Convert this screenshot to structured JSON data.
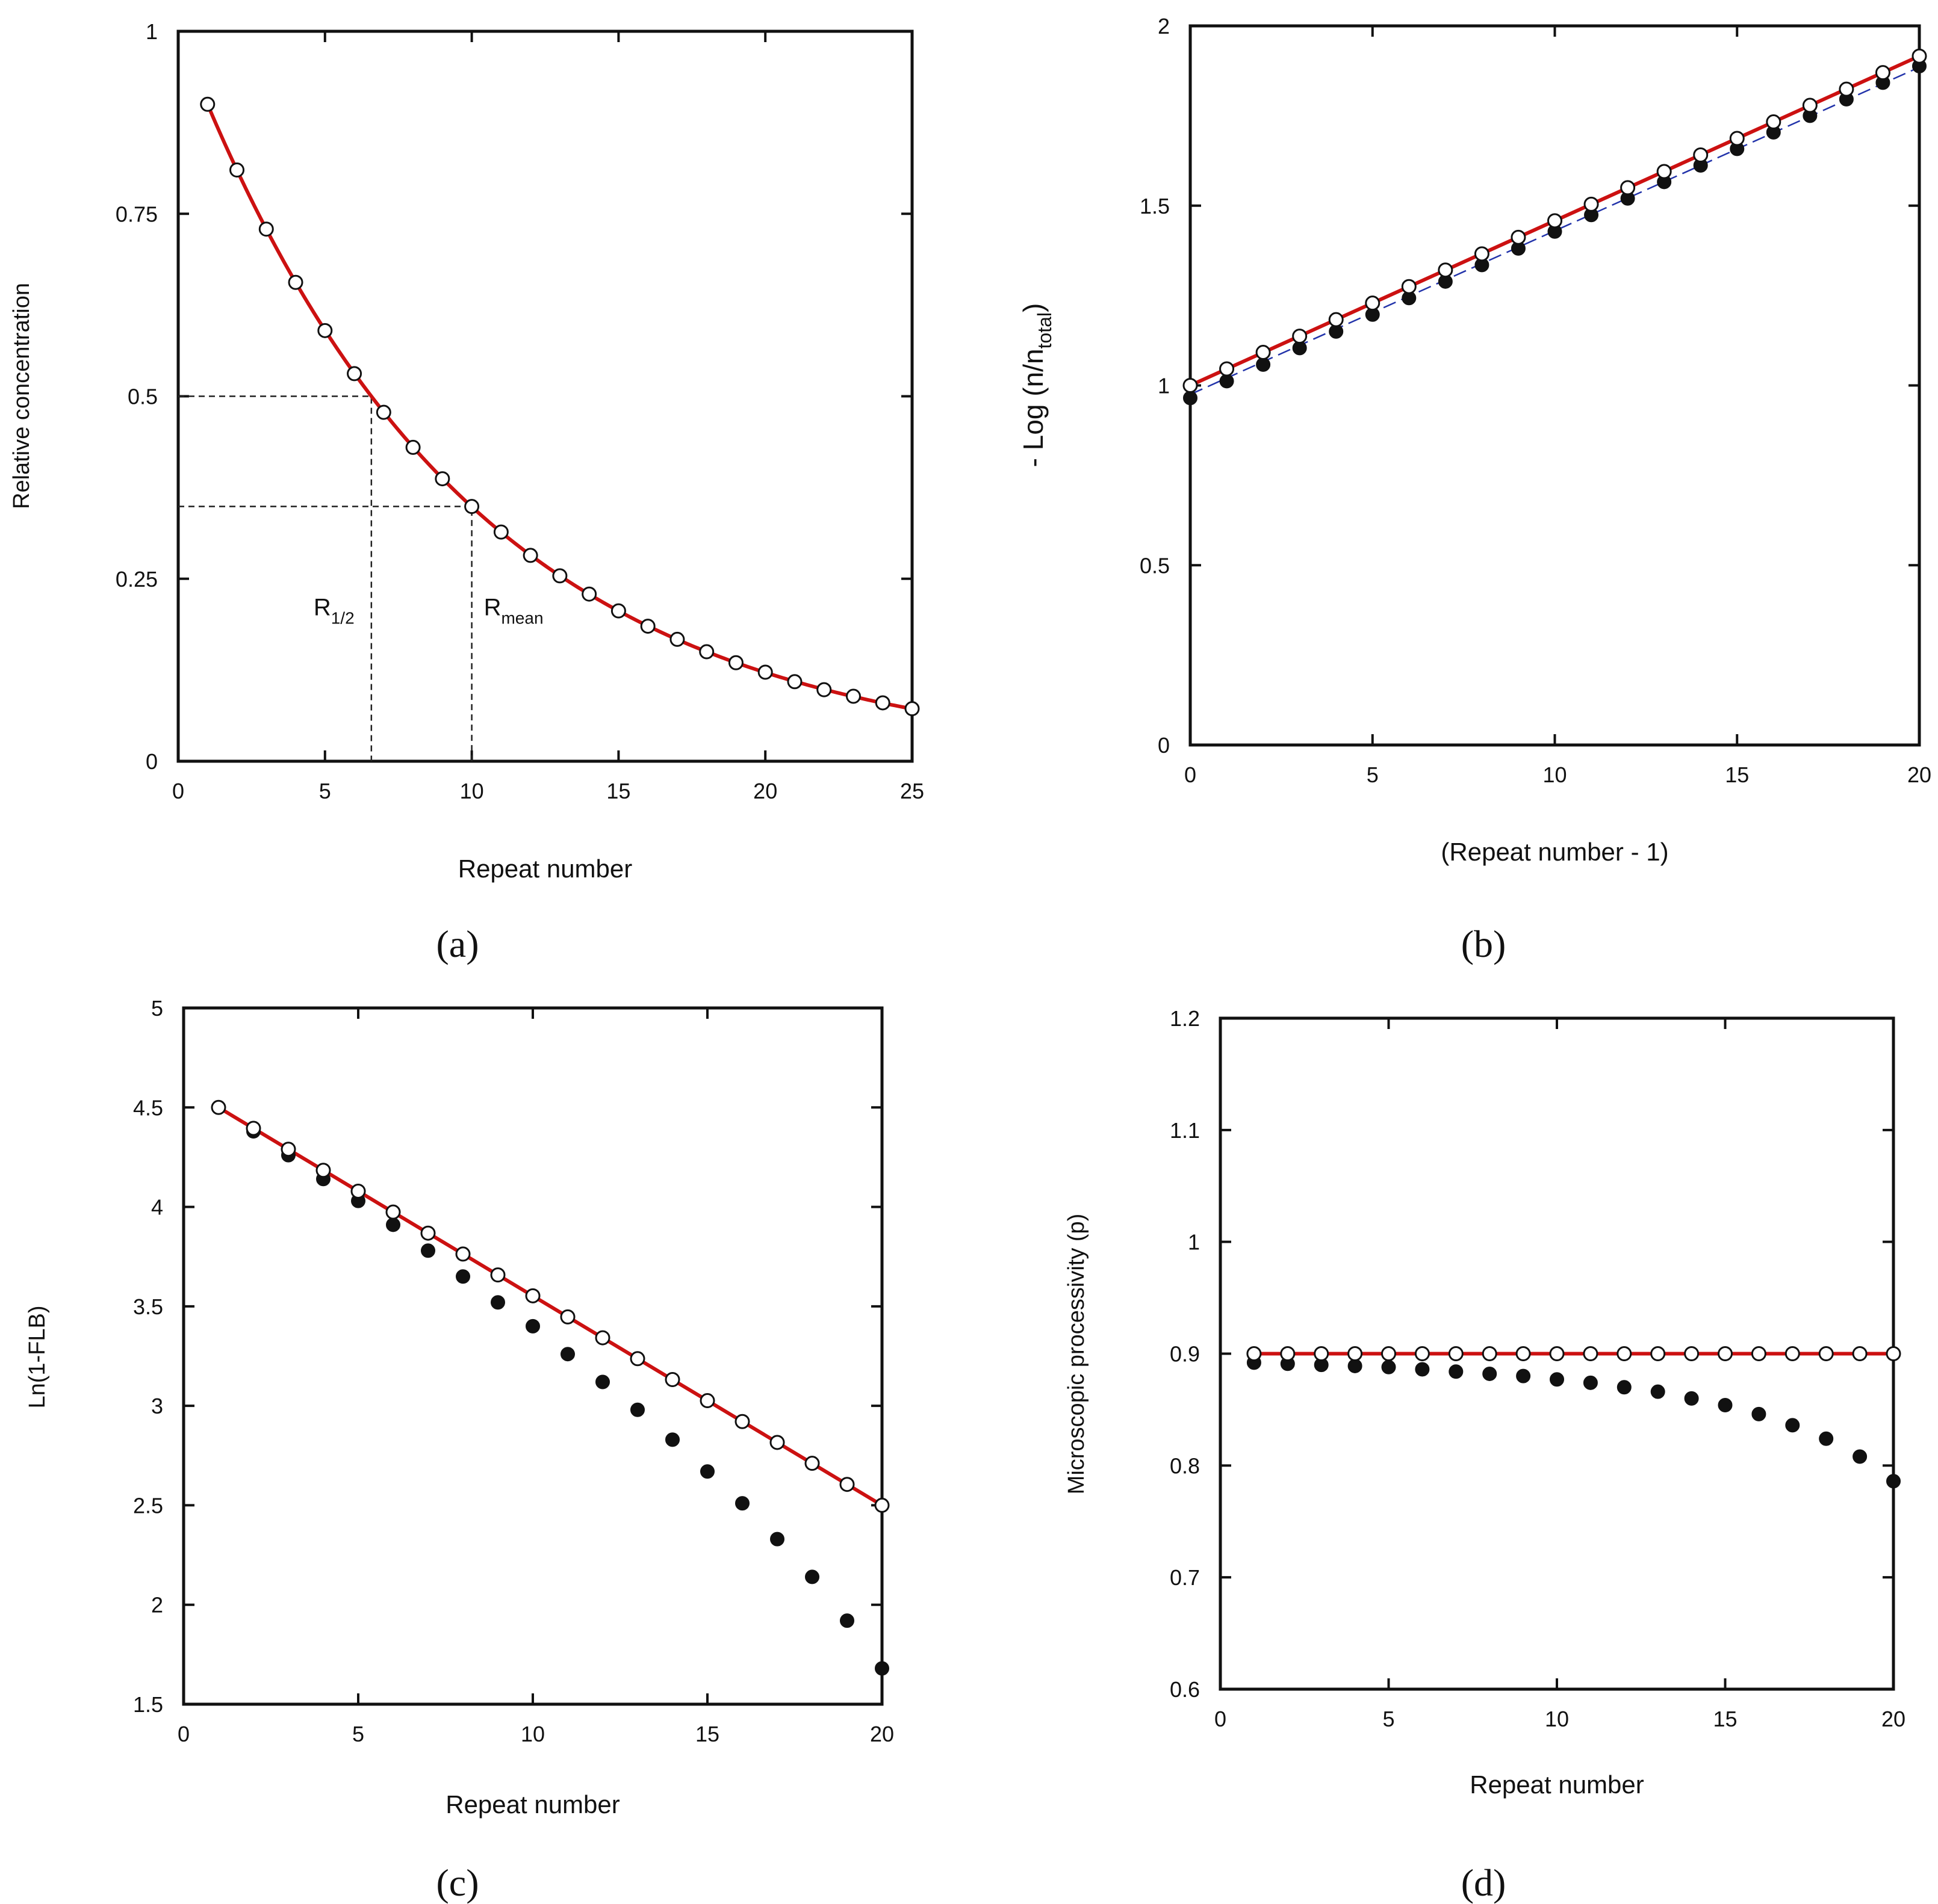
{
  "chart_data": [
    {
      "type": "line",
      "panel_label": "(a)",
      "xlabel": "Repeat number",
      "ylabel": "Relative concentration",
      "xlim": [
        0,
        25
      ],
      "ylim": [
        0,
        1
      ],
      "xticks": [
        0,
        5,
        10,
        15,
        20,
        25
      ],
      "xtick_labels": [
        "0",
        "5",
        "10",
        "15",
        "20",
        "25"
      ],
      "yticks": [
        0,
        0.25,
        0.5,
        0.75,
        1
      ],
      "ytick_labels": [
        "0",
        "0.25",
        "0.5",
        "0.75",
        "1"
      ],
      "curve": {
        "type": "exponential",
        "formula": "0.9^x",
        "x_range": [
          1,
          25
        ],
        "color": "#cc1111"
      },
      "series": [
        {
          "name": "open circles",
          "marker": "open",
          "x": [
            1,
            2,
            3,
            4,
            5,
            6,
            7,
            8,
            9,
            10,
            11,
            12,
            13,
            14,
            15,
            16,
            17,
            18,
            19,
            20,
            21,
            22,
            23,
            24,
            25
          ],
          "y": [
            0.9,
            0.81,
            0.729,
            0.656,
            0.59,
            0.531,
            0.478,
            0.43,
            0.387,
            0.349,
            0.314,
            0.282,
            0.254,
            0.229,
            0.206,
            0.185,
            0.167,
            0.15,
            0.135,
            0.122,
            0.109,
            0.098,
            0.089,
            0.08,
            0.072
          ]
        }
      ],
      "reference_lines": [
        {
          "label": "R",
          "subscript": "1/2",
          "x": 6.58,
          "y": 0.5
        },
        {
          "label": "R",
          "subscript": "mean",
          "x": 10,
          "y": 0.349
        }
      ]
    },
    {
      "type": "line",
      "panel_label": "(b)",
      "xlabel": "(Repeat number - 1)",
      "ylabel": "- Log (n/n",
      "ylabel_sub": "total",
      "ylabel_end": ")",
      "xlim": [
        0,
        20
      ],
      "ylim": [
        0,
        2
      ],
      "xticks": [
        0,
        5,
        10,
        15,
        20
      ],
      "xtick_labels": [
        "0",
        "5",
        "10",
        "15",
        "20"
      ],
      "yticks": [
        0,
        0.5,
        1,
        1.5,
        2
      ],
      "ytick_labels": [
        "0",
        "0.5",
        "1",
        "1.5",
        "2"
      ],
      "fit_lines": [
        {
          "name": "open fit",
          "x": [
            0,
            20
          ],
          "y": [
            1.0,
            1.916
          ],
          "color": "#cc1111",
          "style": "solid"
        },
        {
          "name": "filled fit",
          "x": [
            0,
            20
          ],
          "y": [
            0.975,
            1.885
          ],
          "color": "#2233aa",
          "style": "dashed"
        }
      ],
      "series": [
        {
          "name": "open circles",
          "marker": "open",
          "x": [
            0,
            1,
            2,
            3,
            4,
            5,
            6,
            7,
            8,
            9,
            10,
            11,
            12,
            13,
            14,
            15,
            16,
            17,
            18,
            19,
            20
          ],
          "y": [
            1.0,
            1.046,
            1.092,
            1.137,
            1.183,
            1.229,
            1.275,
            1.321,
            1.366,
            1.412,
            1.458,
            1.504,
            1.55,
            1.595,
            1.641,
            1.687,
            1.733,
            1.779,
            1.824,
            1.87,
            1.916
          ]
        },
        {
          "name": "filled circles",
          "marker": "filled",
          "x": [
            0,
            1,
            2,
            3,
            4,
            5,
            6,
            7,
            8,
            9,
            10,
            11,
            12,
            13,
            14,
            15,
            16,
            17,
            18,
            19,
            20
          ],
          "y": [
            0.965,
            1.012,
            1.058,
            1.104,
            1.15,
            1.197,
            1.243,
            1.289,
            1.335,
            1.381,
            1.428,
            1.474,
            1.52,
            1.566,
            1.612,
            1.658,
            1.704,
            1.75,
            1.796,
            1.842,
            1.888
          ]
        }
      ]
    },
    {
      "type": "line",
      "panel_label": "(c)",
      "xlabel": "Repeat number",
      "ylabel": "Ln(1-FLB)",
      "xlim": [
        0,
        20
      ],
      "ylim": [
        1.5,
        5
      ],
      "xticks": [
        0,
        5,
        10,
        15,
        20
      ],
      "xtick_labels": [
        "0",
        "5",
        "10",
        "15",
        "20"
      ],
      "yticks": [
        1.5,
        2,
        2.5,
        3,
        3.5,
        4,
        4.5,
        5
      ],
      "ytick_labels": [
        "1.5",
        "2",
        "2.5",
        "3",
        "3.5",
        "4",
        "4.5",
        "5"
      ],
      "fit_lines": [
        {
          "name": "open fit",
          "x": [
            1,
            20
          ],
          "y": [
            4.5,
            2.5
          ],
          "color": "#cc1111",
          "style": "solid"
        }
      ],
      "series": [
        {
          "name": "open circles",
          "marker": "open",
          "x": [
            1,
            2,
            3,
            4,
            5,
            6,
            7,
            8,
            9,
            10,
            11,
            12,
            13,
            14,
            15,
            16,
            17,
            18,
            19,
            20
          ],
          "y": [
            4.5,
            4.395,
            4.29,
            4.184,
            4.079,
            3.974,
            3.868,
            3.763,
            3.658,
            3.553,
            3.447,
            3.342,
            3.237,
            3.132,
            3.026,
            2.921,
            2.816,
            2.711,
            2.605,
            2.5
          ]
        },
        {
          "name": "filled circles",
          "marker": "filled",
          "x": [
            1,
            2,
            3,
            4,
            5,
            6,
            7,
            8,
            9,
            10,
            11,
            12,
            13,
            14,
            15,
            16,
            17,
            18,
            19,
            20
          ],
          "y": [
            4.5,
            4.38,
            4.26,
            4.14,
            4.03,
            3.91,
            3.78,
            3.65,
            3.52,
            3.4,
            3.26,
            3.12,
            2.98,
            2.83,
            2.67,
            2.51,
            2.33,
            2.14,
            1.92,
            1.68
          ]
        }
      ]
    },
    {
      "type": "line",
      "panel_label": "(d)",
      "xlabel": "Repeat number",
      "ylabel": "Microscopic processivity  (p)",
      "xlim": [
        0,
        20
      ],
      "ylim": [
        0.6,
        1.2
      ],
      "xticks": [
        0,
        5,
        10,
        15,
        20
      ],
      "xtick_labels": [
        "0",
        "5",
        "10",
        "15",
        "20"
      ],
      "yticks": [
        0.6,
        0.7,
        0.8,
        0.9,
        1,
        1.1,
        1.2
      ],
      "ytick_labels": [
        "0.6",
        "0.7",
        "0.8",
        "0.9",
        "1",
        "1.1",
        "1.2"
      ],
      "fit_lines": [
        {
          "name": "open fit",
          "x": [
            1,
            20
          ],
          "y": [
            0.9,
            0.9
          ],
          "color": "#cc1111",
          "style": "solid"
        }
      ],
      "series": [
        {
          "name": "open circles",
          "marker": "open",
          "x": [
            1,
            2,
            3,
            4,
            5,
            6,
            7,
            8,
            9,
            10,
            11,
            12,
            13,
            14,
            15,
            16,
            17,
            18,
            19,
            20
          ],
          "y": [
            0.9,
            0.9,
            0.9,
            0.9,
            0.9,
            0.9,
            0.9,
            0.9,
            0.9,
            0.9,
            0.9,
            0.9,
            0.9,
            0.9,
            0.9,
            0.9,
            0.9,
            0.9,
            0.9,
            0.9
          ]
        },
        {
          "name": "filled circles",
          "marker": "filled",
          "x": [
            1,
            2,
            3,
            4,
            5,
            6,
            7,
            8,
            9,
            10,
            11,
            12,
            13,
            14,
            15,
            16,
            17,
            18,
            19,
            20
          ],
          "y": [
            0.892,
            0.891,
            0.89,
            0.889,
            0.888,
            0.886,
            0.884,
            0.882,
            0.88,
            0.877,
            0.874,
            0.87,
            0.866,
            0.86,
            0.854,
            0.846,
            0.836,
            0.824,
            0.808,
            0.786
          ]
        }
      ]
    }
  ]
}
